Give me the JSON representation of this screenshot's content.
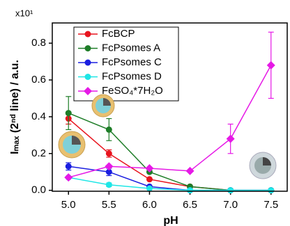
{
  "chart_data": {
    "type": "line",
    "y_multiplier": "x10¹",
    "xlabel": "pH",
    "ylabel": "Iₘₐₓ (2ⁿᵈ line) / a.u.",
    "x": [
      5.0,
      5.5,
      6.0,
      6.5,
      7.0,
      7.5
    ],
    "xlim": [
      4.8,
      7.7
    ],
    "xticks": [
      {
        "value": 5.0,
        "label": "5.0"
      },
      {
        "value": 5.5,
        "label": "5.5"
      },
      {
        "value": 6.0,
        "label": "6.0"
      },
      {
        "value": 6.5,
        "label": "6.5"
      },
      {
        "value": 7.0,
        "label": "7.0"
      },
      {
        "value": 7.5,
        "label": "7.5"
      }
    ],
    "ylim": [
      -0.005,
      0.91
    ],
    "yticks": [
      {
        "value": 0,
        "label": "0.0"
      },
      0.2,
      0.4,
      0.6,
      0.8
    ],
    "legend": "upper left",
    "series": [
      {
        "name": "FcBCP",
        "color": "#e8141e",
        "values": [
          0.39,
          0.2,
          0.06,
          0.02,
          0.0,
          0.0
        ],
        "errors": [
          0.03,
          0.02,
          null,
          null,
          null,
          null
        ]
      },
      {
        "name": "FcPsomes A",
        "color": "#1e7d28",
        "values": [
          0.42,
          0.33,
          0.1,
          0.02,
          0.0,
          0.0
        ],
        "errors": [
          0.09,
          0.06,
          null,
          null,
          null,
          null
        ]
      },
      {
        "name": "FcPsomes C",
        "color": "#1a1ee0",
        "values": [
          0.13,
          0.1,
          0.02,
          0.0,
          0.0,
          0.0
        ],
        "errors": [
          0.02,
          0.02,
          null,
          null,
          null,
          null
        ]
      },
      {
        "name": "FcPsomes D",
        "color": "#1ee6e6",
        "values": [
          0.07,
          0.03,
          0.01,
          0.0,
          0.0,
          0.0
        ],
        "errors": [
          null,
          0.01,
          null,
          null,
          null,
          null
        ]
      },
      {
        "name": "FeSO₄*7H₂O",
        "color": "#e619e6",
        "values": [
          0.07,
          0.13,
          0.12,
          0.105,
          0.28,
          0.68
        ],
        "errors": [
          null,
          null,
          null,
          null,
          0.08,
          0.18
        ]
      }
    ]
  }
}
